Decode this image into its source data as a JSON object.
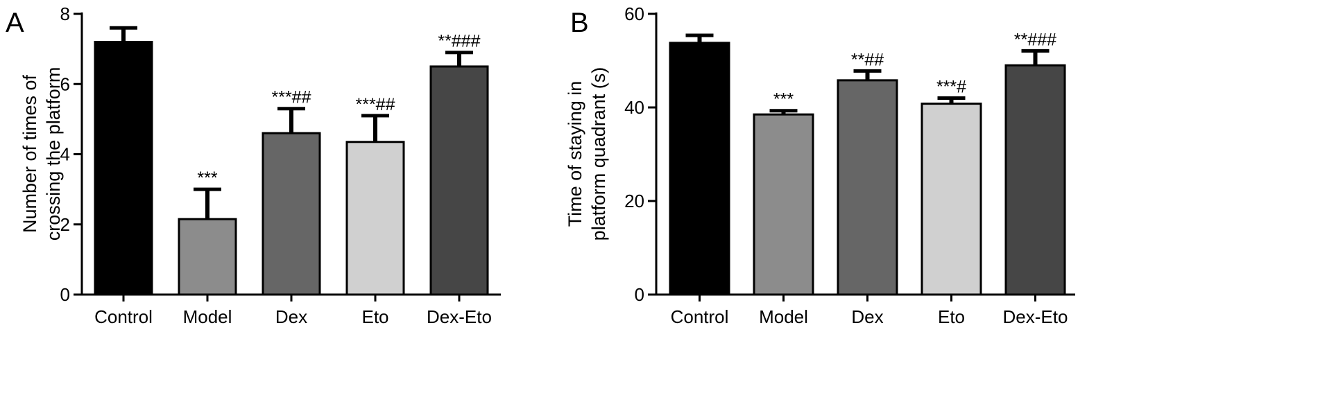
{
  "chart_data": [
    {
      "panel_label": "A",
      "type": "bar",
      "ylabel": [
        "Number of times of",
        "crossing the platform"
      ],
      "ylim": [
        0,
        8
      ],
      "yticks": [
        0,
        2,
        4,
        6,
        8
      ],
      "categories": [
        "Control",
        "Model",
        "Dex",
        "Eto",
        "Dex-Eto"
      ],
      "values": [
        7.2,
        2.15,
        4.6,
        4.35,
        6.5
      ],
      "error": [
        0.4,
        0.85,
        0.7,
        0.75,
        0.4
      ],
      "annotations": [
        "",
        "***",
        "***##",
        "***##",
        "**###"
      ],
      "colors": [
        "#000000",
        "#8c8c8c",
        "#666666",
        "#d0d0d0",
        "#464646"
      ]
    },
    {
      "panel_label": "B",
      "type": "bar",
      "ylabel": [
        "Time of staying in",
        "platform quadrant (s)"
      ],
      "ylim": [
        0,
        60
      ],
      "yticks": [
        0,
        20,
        40,
        60
      ],
      "categories": [
        "Control",
        "Model",
        "Dex",
        "Eto",
        "Dex-Eto"
      ],
      "values": [
        53.8,
        38.5,
        45.8,
        40.8,
        49
      ],
      "error": [
        1.6,
        0.8,
        2,
        1.2,
        3.1
      ],
      "annotations": [
        "",
        "***",
        "**##",
        "***#",
        "**###"
      ],
      "colors": [
        "#000000",
        "#8c8c8c",
        "#666666",
        "#d0d0d0",
        "#464646"
      ]
    }
  ]
}
